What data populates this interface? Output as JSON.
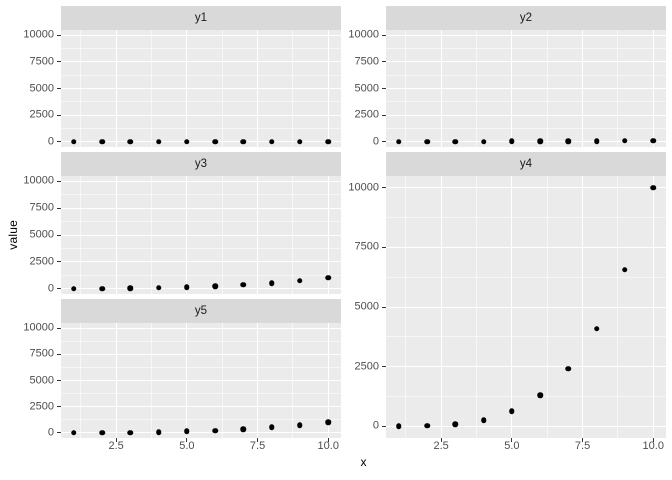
{
  "colors": {
    "background": "#FFFFFF",
    "panel_background": "#EBEBEB",
    "strip_background": "#D9D9D9",
    "grid_major": "#FFFFFF",
    "grid_minor": "#F4F4F4",
    "point": "#000000",
    "axis_text": "#4D4D4D",
    "strip_text": "#1A1A1A",
    "tick_mark": "#333333",
    "axis_title": "#000000"
  },
  "chart_data": {
    "type": "scatter",
    "title": "",
    "xlabel": "x",
    "ylabel": "value",
    "facets": [
      "y1",
      "y2",
      "y3",
      "y4",
      "y5"
    ],
    "legend": "none",
    "grid": "on",
    "x": [
      1,
      2,
      3,
      4,
      5,
      6,
      7,
      8,
      9,
      10
    ],
    "series": [
      {
        "name": "y1",
        "values": [
          1,
          2,
          3,
          4,
          5,
          6,
          7,
          8,
          9,
          10
        ]
      },
      {
        "name": "y2",
        "values": [
          1,
          4,
          9,
          16,
          25,
          36,
          49,
          64,
          81,
          100
        ]
      },
      {
        "name": "y3",
        "values": [
          1,
          8,
          27,
          64,
          125,
          216,
          343,
          512,
          729,
          1000
        ]
      },
      {
        "name": "y4",
        "values": [
          1,
          16,
          81,
          256,
          625,
          1296,
          2401,
          4096,
          6561,
          10000
        ]
      },
      {
        "name": "y5",
        "values": [
          1,
          8,
          27,
          64,
          125,
          216,
          343,
          512,
          729,
          1000
        ]
      }
    ],
    "x_ticks": [
      2.5,
      5.0,
      7.5,
      10.0
    ],
    "x_tick_labels": [
      "2.5",
      "5.0",
      "7.5",
      "10.0"
    ],
    "y_ticks": [
      0,
      2500,
      5000,
      7500,
      10000
    ],
    "y_tick_labels": [
      "0",
      "2500",
      "5000",
      "7500",
      "10000"
    ],
    "x_minor": [
      1.25,
      3.75,
      6.25,
      8.75
    ],
    "y_minor": [
      1250,
      3750,
      6250,
      8750
    ],
    "x_range": [
      0.55,
      10.45
    ],
    "y_range": [
      -499,
      10500
    ],
    "xlim": [
      1,
      10
    ],
    "ylim": [
      0,
      10000
    ]
  }
}
